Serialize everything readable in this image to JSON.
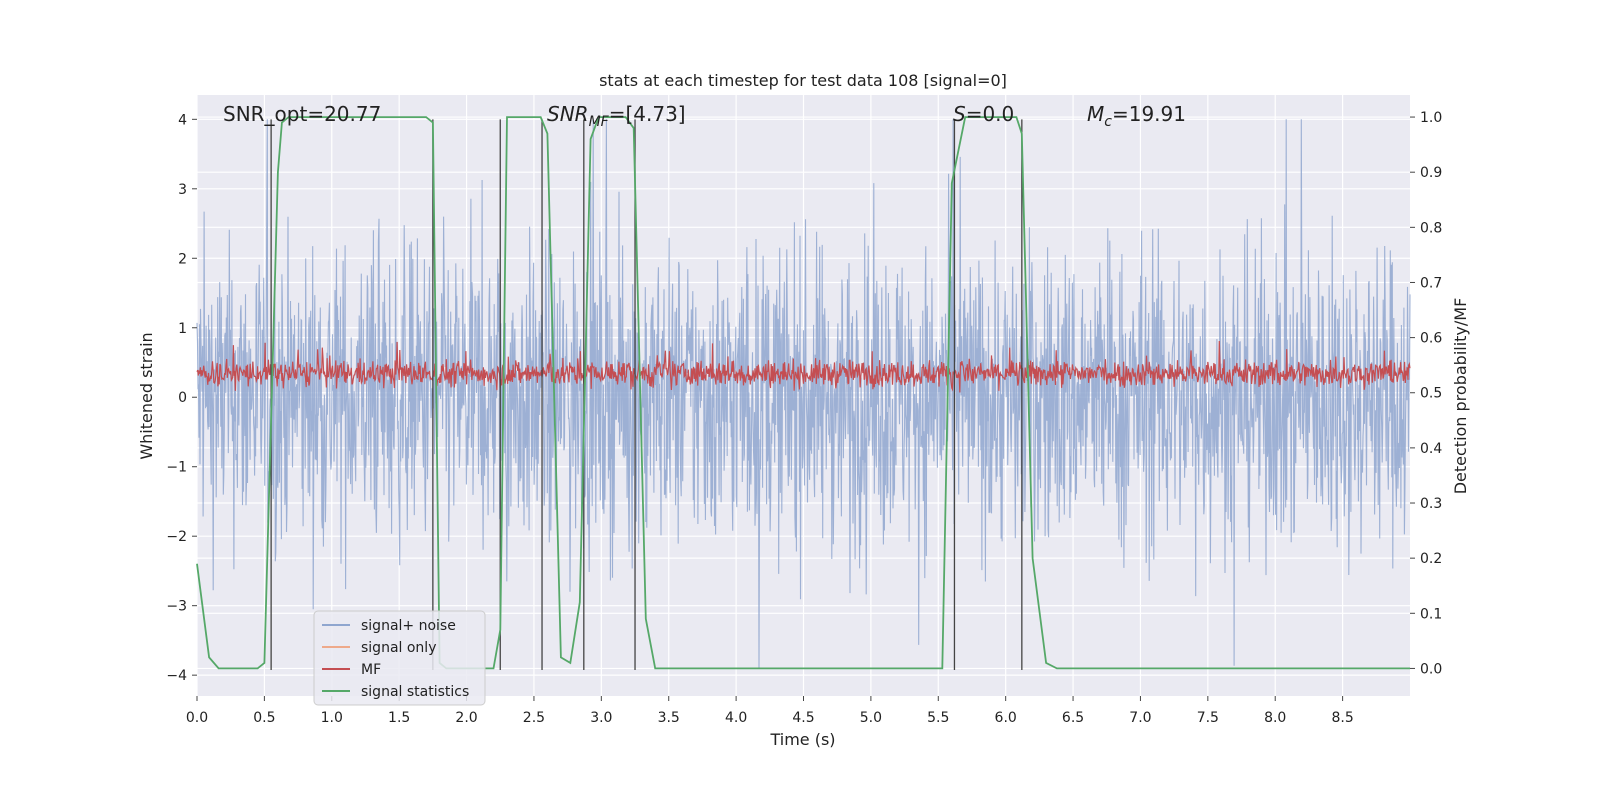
{
  "chart_data": {
    "type": "line",
    "title": "stats at each timestep for test data 108 [signal=0]",
    "xlabel": "Time (s)",
    "ylabel_left": "Whitened strain",
    "ylabel_right": "Detection probability/MF",
    "xlim": [
      0,
      9.0
    ],
    "ylim_left": [
      -4.3,
      4.35
    ],
    "ylim_right": [
      -0.05,
      1.04
    ],
    "xticks": [
      "0.0",
      "0.5",
      "1.0",
      "1.5",
      "2.0",
      "2.5",
      "3.0",
      "3.5",
      "4.0",
      "4.5",
      "5.0",
      "5.5",
      "6.0",
      "6.5",
      "7.0",
      "7.5",
      "8.0",
      "8.5"
    ],
    "xtick_values": [
      0,
      0.5,
      1.0,
      1.5,
      2.0,
      2.5,
      3.0,
      3.5,
      4.0,
      4.5,
      5.0,
      5.5,
      6.0,
      6.5,
      7.0,
      7.5,
      8.0,
      8.5
    ],
    "yticks_left": [
      "−4",
      "−3",
      "−2",
      "−1",
      "0",
      "1",
      "2",
      "3",
      "4"
    ],
    "ytick_values_left": [
      -4,
      -3,
      -2,
      -1,
      0,
      1,
      2,
      3,
      4
    ],
    "yticks_right": [
      "0.0",
      "0.1",
      "0.2",
      "0.3",
      "0.4",
      "0.5",
      "0.6",
      "0.7",
      "0.8",
      "0.9",
      "1.0"
    ],
    "ytick_values_right": [
      0,
      0.1,
      0.2,
      0.3,
      0.4,
      0.5,
      0.6,
      0.7,
      0.8,
      0.9,
      1.0
    ],
    "grid": true,
    "legend_position": "lower-left",
    "annotations": {
      "snr_opt": "SNR_opt=20.77",
      "snr_mf_prefix": "SNR",
      "snr_mf_sub": "MF",
      "snr_mf_value": "=[4.73]",
      "s_label": "S",
      "s_value": "=0.0",
      "mc_label": "M",
      "mc_sub": "c",
      "mc_value": "=19.91"
    },
    "series": [
      {
        "name": "signal+ noise",
        "color": "#8fa6cf",
        "axis": "left",
        "typical_range": [
          -2.0,
          2.0
        ],
        "peak_range": [
          -3.9,
          4.0
        ]
      },
      {
        "name": "signal only",
        "color": "#eea98a",
        "axis": "left",
        "values": []
      },
      {
        "name": "MF",
        "color": "#c44e52",
        "axis": "right",
        "typical_range": [
          0.51,
          0.56
        ],
        "peak_range": [
          0.5,
          0.62
        ]
      },
      {
        "name": "signal statistics",
        "color": "#55a868",
        "axis": "right",
        "x": [
          0.0,
          0.09,
          0.16,
          0.45,
          0.5,
          0.6,
          0.63,
          0.68,
          1.7,
          1.75,
          1.8,
          1.85,
          2.2,
          2.25,
          2.3,
          2.55,
          2.6,
          2.7,
          2.77,
          2.84,
          2.92,
          2.98,
          3.18,
          3.24,
          3.33,
          3.4,
          5.53,
          5.6,
          5.7,
          6.08,
          6.12,
          6.2,
          6.3,
          6.38,
          9.0
        ],
        "values": [
          0.19,
          0.02,
          0.0,
          0.0,
          0.01,
          0.9,
          0.99,
          1.0,
          1.0,
          0.99,
          0.01,
          0.0,
          0.0,
          0.07,
          1.0,
          1.0,
          0.97,
          0.02,
          0.01,
          0.12,
          0.96,
          1.0,
          1.0,
          0.98,
          0.09,
          0.0,
          0.0,
          0.88,
          1.0,
          1.0,
          0.97,
          0.2,
          0.01,
          0.0,
          0.0
        ]
      }
    ],
    "vertical_markers": [
      0.55,
      1.75,
      2.25,
      2.56,
      2.87,
      3.25,
      5.62,
      6.12
    ]
  }
}
